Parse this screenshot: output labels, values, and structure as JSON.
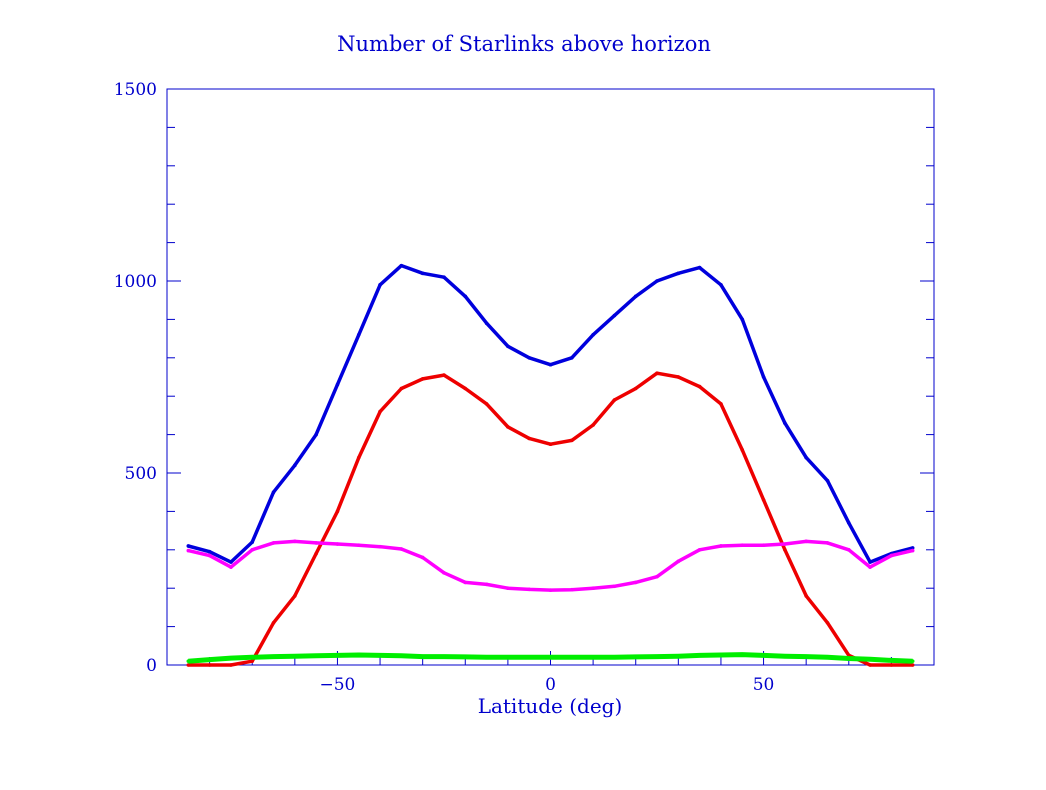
{
  "chart_data": {
    "type": "line",
    "title": "Number of Starlinks above horizon",
    "xlabel": "Latitude (deg)",
    "ylabel": "",
    "xlim": [
      -90,
      90
    ],
    "ylim": [
      0,
      1500
    ],
    "x_ticks": [
      -50,
      0,
      50
    ],
    "y_ticks": [
      0,
      500,
      1000,
      1500
    ],
    "x_tick_labels": [
      "−50",
      "0",
      "50"
    ],
    "y_tick_labels": [
      "0",
      "500",
      "1000",
      "1500"
    ],
    "x_minor_step": 10,
    "y_minor_step": 100,
    "grid": false,
    "legend": "none",
    "axis_color": "#0000cc",
    "x": [
      -85,
      -80,
      -75,
      -70,
      -65,
      -60,
      -55,
      -50,
      -45,
      -40,
      -35,
      -30,
      -25,
      -20,
      -15,
      -10,
      -5,
      0,
      5,
      10,
      15,
      20,
      25,
      30,
      35,
      40,
      45,
      50,
      55,
      60,
      65,
      70,
      75,
      80,
      85
    ],
    "series": [
      {
        "name": "blue",
        "color": "#0000dd",
        "values": [
          310,
          295,
          268,
          320,
          450,
          520,
          600,
          730,
          860,
          990,
          1040,
          1020,
          1010,
          960,
          890,
          830,
          800,
          782,
          800,
          860,
          910,
          960,
          1000,
          1020,
          1035,
          990,
          900,
          750,
          630,
          540,
          480,
          370,
          268,
          290,
          305
        ]
      },
      {
        "name": "red",
        "color": "#ee0000",
        "values": [
          0,
          0,
          0,
          10,
          110,
          180,
          290,
          400,
          540,
          660,
          720,
          745,
          755,
          720,
          680,
          620,
          590,
          575,
          585,
          625,
          690,
          720,
          760,
          750,
          725,
          680,
          560,
          430,
          300,
          180,
          110,
          25,
          0,
          0,
          0
        ]
      },
      {
        "name": "magenta",
        "color": "#ff00ff",
        "values": [
          298,
          285,
          255,
          300,
          318,
          322,
          318,
          315,
          312,
          308,
          302,
          280,
          240,
          215,
          210,
          200,
          197,
          195,
          196,
          200,
          205,
          215,
          230,
          270,
          300,
          310,
          312,
          312,
          315,
          322,
          318,
          300,
          255,
          285,
          298
        ]
      },
      {
        "name": "green",
        "color": "#00ee00",
        "values": [
          10,
          14,
          18,
          20,
          22,
          23,
          24,
          25,
          26,
          25,
          24,
          22,
          22,
          21,
          20,
          20,
          20,
          20,
          20,
          20,
          20,
          21,
          22,
          23,
          25,
          26,
          27,
          25,
          23,
          22,
          20,
          17,
          15,
          12,
          10
        ]
      }
    ]
  }
}
